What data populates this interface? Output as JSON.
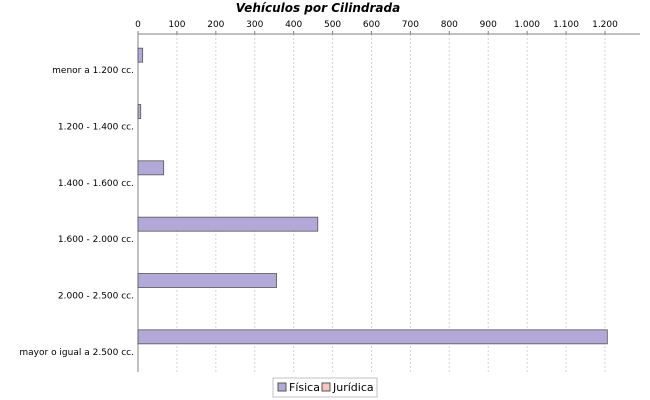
{
  "chart_data": {
    "type": "bar",
    "orientation": "horizontal",
    "title": "Vehículos por Cilindrada",
    "xlabel": "",
    "ylabel": "",
    "xlim": [
      0,
      1290
    ],
    "ticks": [
      {
        "value": 0,
        "label": "0"
      },
      {
        "value": 100,
        "label": "100"
      },
      {
        "value": 200,
        "label": "200"
      },
      {
        "value": 300,
        "label": "300"
      },
      {
        "value": 400,
        "label": "400"
      },
      {
        "value": 500,
        "label": "500"
      },
      {
        "value": 600,
        "label": "600"
      },
      {
        "value": 700,
        "label": "700"
      },
      {
        "value": 800,
        "label": "800"
      },
      {
        "value": 900,
        "label": "900"
      },
      {
        "value": 1000,
        "label": "1.000"
      },
      {
        "value": 1100,
        "label": "1.100"
      },
      {
        "value": 1200,
        "label": "1.200"
      }
    ],
    "categories": [
      "menor a 1.200 cc.",
      "1.200 - 1.400 cc.",
      "1.400 - 1.600 cc.",
      "1.600 - 2.000 cc.",
      "2.000 - 2.500 cc.",
      "mayor o igual a 2.500 cc."
    ],
    "series": [
      {
        "name": "Física",
        "color": "#b3a9d9",
        "values": [
          12,
          7,
          66,
          462,
          356,
          1206
        ]
      },
      {
        "name": "Jurídica",
        "color": "#f2c6c2",
        "values": [
          0,
          0,
          0,
          0,
          0,
          0
        ]
      }
    ],
    "axis_position": "top",
    "grid": true,
    "legend_position": "bottom"
  }
}
